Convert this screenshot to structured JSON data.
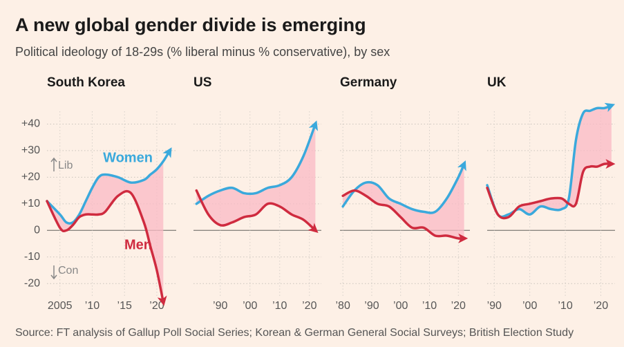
{
  "title": "A new global gender divide is emerging",
  "subtitle": "Political ideology of 18-29s (% liberal minus % conservative), by sex",
  "source": "Source: FT analysis of Gallup Poll Social Series; Korean & German General Social Surveys; British Election Study",
  "chart_data": [
    {
      "type": "line",
      "title": "South Korea",
      "x": [
        2003,
        2005,
        2006,
        2007,
        2008,
        2009,
        2010,
        2011,
        2012,
        2014,
        2016,
        2018,
        2019,
        2020,
        2021,
        2022
      ],
      "series": [
        {
          "name": "Women",
          "color": "#3aa9dc",
          "values": [
            11,
            6,
            3,
            3,
            6,
            11,
            16,
            20,
            21,
            20,
            18,
            19,
            21,
            23,
            26,
            30
          ]
        },
        {
          "name": "Men",
          "color": "#cf2b3f",
          "values": [
            11,
            1,
            0,
            2,
            5,
            6,
            6,
            6,
            7,
            13,
            14,
            3,
            -6,
            -15,
            -27,
            null
          ]
        }
      ],
      "xlim": [
        2003,
        2023
      ],
      "xticks": [
        2005,
        {
          "value": 2010,
          "label": "’10"
        },
        {
          "value": 2015,
          "label": "’15"
        },
        {
          "value": 2020,
          "label": "’20"
        }
      ],
      "ylim": [
        -28,
        50
      ],
      "yticks": [
        {
          "value": 40,
          "label": "+40"
        },
        {
          "value": 30,
          "label": "+30"
        },
        {
          "value": 20,
          "label": "+20"
        },
        {
          "value": 10,
          "label": "+10"
        },
        0,
        -10,
        -20
      ],
      "grid": true,
      "annotations": [
        "Lib",
        "Con"
      ]
    },
    {
      "type": "line",
      "title": "US",
      "x": [
        1982,
        1986,
        1990,
        1994,
        1998,
        2002,
        2006,
        2010,
        2014,
        2018,
        2022
      ],
      "series": [
        {
          "color": "#3aa9dc",
          "values": [
            10,
            13,
            15,
            16,
            14,
            14,
            16,
            17,
            20,
            28,
            40
          ]
        },
        {
          "color": "#cf2b3f",
          "values": [
            15,
            6,
            2,
            3,
            5,
            6,
            10,
            9,
            6,
            4,
            0
          ]
        }
      ],
      "xlim": [
        1981,
        2024
      ],
      "xticks": [
        {
          "value": 1990,
          "label": "’90"
        },
        {
          "value": 2000,
          "label": "’00"
        },
        {
          "value": 2010,
          "label": "’10"
        },
        {
          "value": 2020,
          "label": "’20"
        }
      ]
    },
    {
      "type": "line",
      "title": "Germany",
      "x": [
        1980,
        1984,
        1988,
        1992,
        1996,
        2000,
        2004,
        2008,
        2012,
        2016,
        2020,
        2022
      ],
      "series": [
        {
          "color": "#3aa9dc",
          "values": [
            9,
            15,
            18,
            17,
            12,
            10,
            8,
            7,
            7,
            12,
            20,
            25
          ]
        },
        {
          "color": "#cf2b3f",
          "values": [
            13,
            15,
            13,
            10,
            9,
            5,
            1,
            1,
            -2,
            -2,
            -3,
            -3
          ]
        }
      ],
      "xlim": [
        1979,
        2024
      ],
      "xticks": [
        {
          "value": 1980,
          "label": "’80"
        },
        {
          "value": 1990,
          "label": "’90"
        },
        {
          "value": 2000,
          "label": "’00"
        },
        {
          "value": 2010,
          "label": "’10"
        },
        {
          "value": 2020,
          "label": "’20"
        }
      ]
    },
    {
      "type": "line",
      "title": "UK",
      "x": [
        1988,
        1991,
        1994,
        1997,
        2000,
        2003,
        2006,
        2009,
        2011,
        2013,
        2015,
        2017,
        2019,
        2021,
        2023
      ],
      "series": [
        {
          "color": "#3aa9dc",
          "values": [
            17,
            6,
            6,
            8,
            6,
            9,
            8,
            8,
            12,
            34,
            44,
            45,
            46,
            46,
            47
          ]
        },
        {
          "color": "#cf2b3f",
          "values": [
            16,
            6,
            5,
            9,
            10,
            11,
            12,
            12,
            10,
            10,
            22,
            24,
            24,
            25,
            25
          ]
        }
      ],
      "xlim": [
        1988,
        2024
      ],
      "xticks": [
        {
          "value": 1990,
          "label": "’90"
        },
        {
          "value": 2000,
          "label": "’00"
        },
        {
          "value": 2010,
          "label": "’10"
        },
        {
          "value": 2020,
          "label": "’20"
        }
      ]
    }
  ]
}
